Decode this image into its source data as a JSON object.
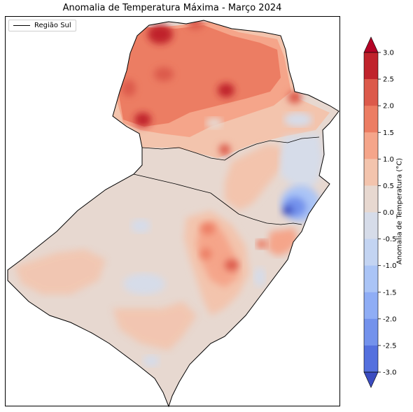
{
  "title": "Anomalia de Temperatura Máxima - Março 2024",
  "legend": {
    "label": "Região Sul",
    "line_color": "#000000"
  },
  "colorbar": {
    "label": "Anomalia de Temperatura (°C)",
    "ticks": [
      "3.0",
      "2.5",
      "2.0",
      "1.5",
      "1.0",
      "0.5",
      "0.0",
      "-0.5",
      "-1.0",
      "-1.5",
      "-2.0",
      "-2.5",
      "-3.0"
    ],
    "levels": [
      {
        "range": [
          2.5,
          3.0
        ],
        "color": "#c0232c"
      },
      {
        "range": [
          2.0,
          2.5
        ],
        "color": "#dc5a4b"
      },
      {
        "range": [
          1.5,
          2.0
        ],
        "color": "#ec7d63"
      },
      {
        "range": [
          1.0,
          1.5
        ],
        "color": "#f5a58a"
      },
      {
        "range": [
          0.5,
          1.0
        ],
        "color": "#f3c4ad"
      },
      {
        "range": [
          0.0,
          0.5
        ],
        "color": "#e7d8d0"
      },
      {
        "range": [
          -0.5,
          0.0
        ],
        "color": "#d6dce9"
      },
      {
        "range": [
          -1.0,
          -0.5
        ],
        "color": "#c3d4f2"
      },
      {
        "range": [
          -1.5,
          -1.0
        ],
        "color": "#aac4f6"
      },
      {
        "range": [
          -2.0,
          -1.5
        ],
        "color": "#8fadf5"
      },
      {
        "range": [
          -2.5,
          -2.0
        ],
        "color": "#7392ec"
      },
      {
        "range": [
          -3.0,
          -2.5
        ],
        "color": "#5470de"
      }
    ],
    "extend": "both",
    "over_color": "#b40426",
    "under_color": "#3b4cc0"
  }
}
